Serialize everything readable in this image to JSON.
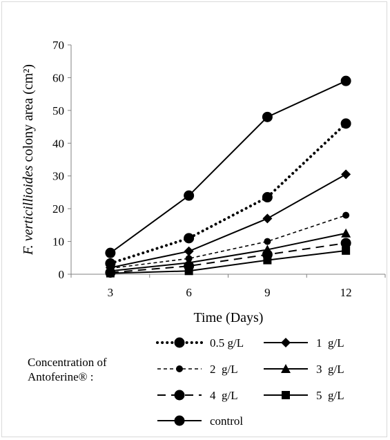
{
  "chart_data": {
    "type": "line",
    "title": "",
    "xlabel": "Time (Days)",
    "ylabel_italic": "F. verticillioides",
    "ylabel_rest": " colony area (cm²)",
    "x": [
      3,
      6,
      9,
      12
    ],
    "xticks": [
      "3",
      "6",
      "9",
      "12"
    ],
    "ylim": [
      0,
      70
    ],
    "yticks": [
      "0",
      "10",
      "20",
      "30",
      "40",
      "50",
      "60",
      "70"
    ],
    "grid": false,
    "series": [
      {
        "name": "0.5 g/L",
        "values": [
          3.3,
          11.0,
          23.5,
          46.0
        ],
        "dash": "dotted",
        "marker": "circle-large"
      },
      {
        "name": "1  g/L",
        "values": [
          2.0,
          7.0,
          17.0,
          30.5
        ],
        "dash": "solid",
        "marker": "diamond"
      },
      {
        "name": "2  g/L",
        "values": [
          1.8,
          4.8,
          10.0,
          18.0
        ],
        "dash": "short-dash",
        "marker": "circle-small"
      },
      {
        "name": "3  g/L",
        "values": [
          1.0,
          3.5,
          7.5,
          12.5
        ],
        "dash": "solid",
        "marker": "triangle"
      },
      {
        "name": "4  g/L",
        "values": [
          0.5,
          2.5,
          6.0,
          9.5
        ],
        "dash": "long-dash",
        "marker": "circle-large"
      },
      {
        "name": "5  g/L",
        "values": [
          0.3,
          1.0,
          4.3,
          7.2
        ],
        "dash": "solid",
        "marker": "square"
      },
      {
        "name": "control",
        "values": [
          6.5,
          24.0,
          48.0,
          59.0
        ],
        "dash": "solid",
        "marker": "circle-large"
      }
    ],
    "legend": {
      "title_line1": "Concentration of",
      "title_line2": "Antoferine® :",
      "placement": "bottom"
    },
    "colors": {
      "line": "#000000",
      "axis": "#808080"
    }
  }
}
